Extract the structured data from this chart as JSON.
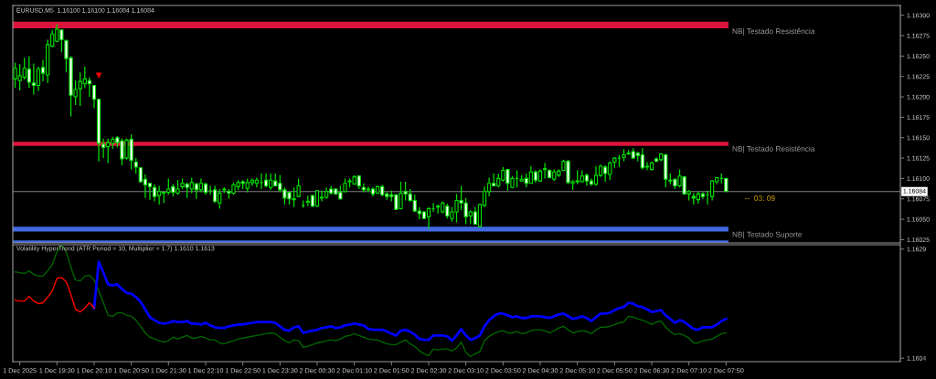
{
  "chart_data": [
    {
      "type": "candlestick",
      "title": "EURUSD,M5  1.16100 1.16100 1.16084 1.16084",
      "color": "#00e000",
      "tick_labels": "y",
      "categories": [
        null,
        null,
        null,
        null,
        null,
        null,
        null,
        null,
        null,
        null,
        null,
        null,
        null,
        null,
        null,
        null,
        null,
        null,
        null,
        null,
        null,
        null,
        null,
        null,
        null,
        null,
        null,
        null,
        null,
        null,
        null,
        null,
        null,
        null,
        null,
        null,
        null,
        null,
        null,
        null,
        null,
        null,
        null,
        null,
        null,
        null,
        null,
        null,
        null,
        null,
        null,
        null,
        null,
        null,
        null,
        null,
        null,
        null,
        null,
        null,
        null,
        null,
        null,
        null,
        null,
        null,
        null,
        null,
        null,
        null,
        null,
        null,
        null,
        null,
        null,
        null,
        null,
        null,
        null,
        null,
        null,
        null,
        null,
        null,
        null,
        null,
        null,
        null,
        null,
        null,
        null,
        null,
        null,
        null,
        null,
        null,
        null,
        null,
        null,
        null,
        null,
        null,
        null,
        null,
        null,
        null,
        null,
        null,
        null,
        null,
        null,
        null,
        null,
        null,
        null,
        null,
        null,
        null,
        null,
        null,
        null,
        null,
        null,
        null,
        null,
        null,
        null,
        null,
        null,
        null,
        null,
        null,
        null,
        null,
        null,
        null,
        null,
        null,
        null,
        null,
        null,
        null,
        null,
        null,
        null,
        null,
        null,
        null,
        null,
        null,
        null,
        null,
        null,
        null,
        null,
        null,
        null,
        null,
        null,
        null,
        null,
        null,
        null,
        null,
        null,
        null,
        null,
        null,
        null,
        null,
        null,
        null,
        null,
        null,
        null,
        null,
        null,
        null,
        null,
        null,
        null,
        null,
        null,
        null,
        null,
        null,
        null,
        null,
        null,
        null,
        null
      ],
      "ohlc": [
        [
          1.16222,
          1.16242,
          1.16211,
          1.16235
        ],
        [
          1.1622,
          1.1624,
          1.16208,
          1.16226
        ],
        [
          1.16224,
          1.16248,
          1.16221,
          1.16235
        ],
        [
          1.16234,
          1.1625,
          1.16211,
          1.16218
        ],
        [
          1.16217,
          1.16241,
          1.16203,
          1.16214
        ],
        [
          1.16214,
          1.16237,
          1.16207,
          1.16234
        ],
        [
          1.16236,
          1.16245,
          1.16219,
          1.16229
        ],
        [
          1.16227,
          1.1627,
          1.16217,
          1.16264
        ],
        [
          1.16262,
          1.16282,
          1.16261,
          1.16277
        ],
        [
          1.16268,
          1.16289,
          1.16267,
          1.16283
        ],
        [
          1.16282,
          1.16283,
          1.16255,
          1.1627
        ],
        [
          1.16269,
          1.1627,
          1.1623,
          1.16247
        ],
        [
          1.16248,
          1.1625,
          1.16176,
          1.16202
        ],
        [
          1.162,
          1.1622,
          1.1619,
          1.16209
        ],
        [
          1.1621,
          1.1623,
          1.16189,
          1.16219
        ],
        [
          1.16216,
          1.16237,
          1.16211,
          1.16222
        ],
        [
          1.1622,
          1.16224,
          1.162,
          1.16216
        ],
        [
          1.16214,
          1.16214,
          1.16186,
          1.16197
        ],
        [
          1.16197,
          1.16197,
          1.16121,
          1.16143
        ],
        [
          1.16142,
          1.16149,
          1.16125,
          1.16138
        ],
        [
          1.16139,
          1.16149,
          1.16119,
          1.16144
        ],
        [
          1.16143,
          1.16151,
          1.16136,
          1.16148
        ],
        [
          1.1615,
          1.16152,
          1.16138,
          1.16144
        ],
        [
          1.16146,
          1.16149,
          1.16116,
          1.16124
        ],
        [
          1.16125,
          1.16149,
          1.16123,
          1.16147
        ],
        [
          1.16148,
          1.16154,
          1.16111,
          1.16122
        ],
        [
          1.1612,
          1.16125,
          1.16106,
          1.16114
        ],
        [
          1.16113,
          1.16114,
          1.16095,
          1.16096
        ],
        [
          1.16099,
          1.16105,
          1.16076,
          1.16092
        ],
        [
          1.16094,
          1.16095,
          1.16074,
          1.1609
        ],
        [
          1.16089,
          1.16093,
          1.16072,
          1.16078
        ],
        [
          1.16079,
          1.16091,
          1.16068,
          1.16084
        ],
        [
          1.16082,
          1.16084,
          1.1607,
          1.16083
        ],
        [
          1.16083,
          1.161,
          1.1608,
          1.16087
        ],
        [
          1.1609,
          1.16093,
          1.16078,
          1.16083
        ],
        [
          1.16082,
          1.16098,
          1.1608,
          1.16087
        ],
        [
          1.1609,
          1.161,
          1.16087,
          1.16094
        ],
        [
          1.16093,
          1.16095,
          1.16076,
          1.16089
        ],
        [
          1.16087,
          1.16101,
          1.16082,
          1.16095
        ],
        [
          1.16093,
          1.16095,
          1.16075,
          1.16086
        ],
        [
          1.16086,
          1.161,
          1.16083,
          1.16094
        ],
        [
          1.16093,
          1.16095,
          1.1608,
          1.16083
        ],
        [
          1.16085,
          1.16091,
          1.1608,
          1.16085
        ],
        [
          1.16086,
          1.16091,
          1.1607,
          1.16072
        ],
        [
          1.1607,
          1.16087,
          1.16063,
          1.16082
        ],
        [
          1.16086,
          1.16089,
          1.16082,
          1.16087
        ],
        [
          1.16084,
          1.16087,
          1.16075,
          1.16082
        ],
        [
          1.16082,
          1.16095,
          1.1608,
          1.16092
        ],
        [
          1.1609,
          1.16098,
          1.16086,
          1.16095
        ],
        [
          1.16096,
          1.16098,
          1.16087,
          1.16094
        ],
        [
          1.16088,
          1.161,
          1.16083,
          1.16095
        ],
        [
          1.16095,
          1.161,
          1.16091,
          1.16098
        ],
        [
          1.16094,
          1.16101,
          1.16089,
          1.16098
        ],
        [
          1.16095,
          1.16106,
          1.16087,
          1.16095
        ],
        [
          1.16098,
          1.16106,
          1.16089,
          1.16091
        ],
        [
          1.16089,
          1.16106,
          1.16086,
          1.16098
        ],
        [
          1.16097,
          1.16106,
          1.1609,
          1.16091
        ],
        [
          1.16094,
          1.16104,
          1.16083,
          1.16086
        ],
        [
          1.16086,
          1.16089,
          1.16068,
          1.16076
        ],
        [
          1.16083,
          1.16084,
          1.16068,
          1.16075
        ],
        [
          1.16075,
          1.16089,
          1.16065,
          1.16074
        ],
        [
          1.16078,
          1.161,
          1.16077,
          1.16091
        ],
        [
          1.16067,
          1.16073,
          1.16064,
          1.16067
        ],
        [
          1.16071,
          1.16079,
          1.16066,
          1.16072
        ],
        [
          1.16079,
          1.1608,
          1.16065,
          1.16066
        ],
        [
          1.16066,
          1.16086,
          1.16065,
          1.16085
        ],
        [
          1.16076,
          1.16085,
          1.16072,
          1.16077
        ],
        [
          1.16077,
          1.16089,
          1.16075,
          1.16084
        ],
        [
          1.16087,
          1.16091,
          1.1608,
          1.16082
        ],
        [
          1.16087,
          1.16088,
          1.1608,
          1.16081
        ],
        [
          1.16083,
          1.16091,
          1.16074,
          1.16075
        ],
        [
          1.16084,
          1.161,
          1.16083,
          1.16094
        ],
        [
          1.16096,
          1.161,
          1.16089,
          1.16097
        ],
        [
          1.16093,
          1.16104,
          1.16093,
          1.16102
        ],
        [
          1.16103,
          1.16104,
          1.16087,
          1.16091
        ],
        [
          1.16089,
          1.16094,
          1.16083,
          1.16086
        ],
        [
          1.16087,
          1.1609,
          1.16083,
          1.16086
        ],
        [
          1.16087,
          1.16089,
          1.16078,
          1.16081
        ],
        [
          1.16082,
          1.16091,
          1.16081,
          1.1609
        ],
        [
          1.1609,
          1.16092,
          1.16078,
          1.1608
        ],
        [
          1.16081,
          1.16083,
          1.16074,
          1.16078
        ],
        [
          1.1608,
          1.16085,
          1.16072,
          1.16078
        ],
        [
          1.1608,
          1.16081,
          1.16062,
          1.16062
        ],
        [
          1.16063,
          1.16096,
          1.16062,
          1.16082
        ],
        [
          1.16084,
          1.16096,
          1.16073,
          1.16081
        ],
        [
          1.16081,
          1.16087,
          1.16071,
          1.16073
        ],
        [
          1.16073,
          1.1608,
          1.16059,
          1.1606
        ],
        [
          1.1606,
          1.16065,
          1.1605,
          1.16057
        ],
        [
          1.16059,
          1.1606,
          1.1605,
          1.16051
        ],
        [
          1.16053,
          1.16065,
          1.16038,
          1.16063
        ],
        [
          1.16063,
          1.1607,
          1.16059,
          1.16063
        ],
        [
          1.16066,
          1.16068,
          1.16057,
          1.16065
        ],
        [
          1.16059,
          1.16072,
          1.16057,
          1.1607
        ],
        [
          1.16066,
          1.16069,
          1.16051,
          1.16054
        ],
        [
          1.16051,
          1.16065,
          1.16047,
          1.16059
        ],
        [
          1.16059,
          1.16081,
          1.16046,
          1.16073
        ],
        [
          1.16073,
          1.16091,
          1.16061,
          1.1607
        ],
        [
          1.1607,
          1.16076,
          1.16044,
          1.16053
        ],
        [
          1.16054,
          1.16061,
          1.16044,
          1.16059
        ],
        [
          1.16059,
          1.16065,
          1.16044,
          1.16044
        ],
        [
          1.16041,
          1.16069,
          1.1604,
          1.16068
        ],
        [
          1.16067,
          1.1609,
          1.16065,
          1.16084
        ],
        [
          1.16084,
          1.16101,
          1.16078,
          1.16094
        ],
        [
          1.16094,
          1.16106,
          1.1609,
          1.16091
        ],
        [
          1.16091,
          1.16106,
          1.16089,
          1.161
        ],
        [
          1.16098,
          1.16114,
          1.16096,
          1.1611
        ],
        [
          1.16111,
          1.16111,
          1.16085,
          1.16094
        ],
        [
          1.16089,
          1.16103,
          1.16088,
          1.161
        ],
        [
          1.161,
          1.1611,
          1.16089,
          1.161
        ],
        [
          1.16097,
          1.16104,
          1.16096,
          1.16099
        ],
        [
          1.161,
          1.16106,
          1.16089,
          1.16094
        ],
        [
          1.16094,
          1.16115,
          1.16094,
          1.16108
        ],
        [
          1.16108,
          1.1611,
          1.16095,
          1.16098
        ],
        [
          1.16097,
          1.16111,
          1.16096,
          1.16109
        ],
        [
          1.16112,
          1.16119,
          1.161,
          1.16111
        ],
        [
          1.1611,
          1.16111,
          1.161,
          1.16101
        ],
        [
          1.16099,
          1.16111,
          1.16097,
          1.16108
        ],
        [
          1.16104,
          1.16111,
          1.16102,
          1.16109
        ],
        [
          1.1611,
          1.16123,
          1.16109,
          1.16121
        ],
        [
          1.16121,
          1.16123,
          1.16093,
          1.16095
        ],
        [
          1.16094,
          1.16098,
          1.16086,
          1.16096
        ],
        [
          1.16097,
          1.1611,
          1.16093,
          1.16096
        ],
        [
          1.16096,
          1.1611,
          1.16095,
          1.16103
        ],
        [
          1.16104,
          1.16106,
          1.16091,
          1.16097
        ],
        [
          1.16097,
          1.161,
          1.16091,
          1.16093
        ],
        [
          1.16093,
          1.16115,
          1.16091,
          1.16104
        ],
        [
          1.16104,
          1.16117,
          1.16102,
          1.16115
        ],
        [
          1.16114,
          1.16116,
          1.16096,
          1.16106
        ],
        [
          1.16105,
          1.16121,
          1.16098,
          1.16119
        ],
        [
          1.1612,
          1.16126,
          1.16113,
          1.16125
        ],
        [
          1.16125,
          1.16129,
          1.16114,
          1.16125
        ],
        [
          1.16126,
          1.16136,
          1.16121,
          1.16129
        ],
        [
          1.16131,
          1.16135,
          1.16129,
          1.1613
        ],
        [
          1.16133,
          1.16137,
          1.16124,
          1.16125
        ],
        [
          1.16131,
          1.16133,
          1.16121,
          1.16128
        ],
        [
          1.16129,
          1.16137,
          1.16111,
          1.16113
        ],
        [
          1.16115,
          1.1612,
          1.1611,
          1.16114
        ],
        [
          1.16111,
          1.16121,
          1.1611,
          1.16119
        ],
        [
          1.16124,
          1.16126,
          1.1612,
          1.16121
        ],
        [
          1.16123,
          1.16131,
          1.16121,
          1.1613
        ],
        [
          1.16129,
          1.1613,
          1.16089,
          1.16099
        ],
        [
          1.16098,
          1.16106,
          1.16093,
          1.16097
        ],
        [
          1.16099,
          1.161,
          1.16087,
          1.16091
        ],
        [
          1.16091,
          1.16111,
          1.16089,
          1.16103
        ],
        [
          1.16102,
          1.16103,
          1.1608,
          1.16081
        ],
        [
          1.16081,
          1.16086,
          1.16073,
          1.16084
        ],
        [
          1.16078,
          1.16082,
          1.16068,
          1.16076
        ],
        [
          1.16074,
          1.16084,
          1.16069,
          1.16081
        ],
        [
          1.16081,
          1.16083,
          1.16075,
          1.16078
        ],
        [
          1.1608,
          1.16085,
          1.16068,
          1.1608
        ],
        [
          1.16078,
          1.16098,
          1.16073,
          1.16097
        ],
        [
          1.16096,
          1.16102,
          1.16093,
          1.16101
        ],
        [
          1.161,
          1.16106,
          1.16094,
          1.161
        ],
        [
          1.161,
          1.161,
          1.16084,
          1.16084
        ],
        null,
        null,
        null,
        null,
        null,
        null,
        null,
        null,
        null,
        null,
        null,
        null,
        null,
        null,
        null,
        null,
        null,
        null,
        null,
        null,
        null,
        null,
        null,
        null,
        null,
        null,
        null,
        null,
        null,
        null,
        null,
        null,
        null,
        null,
        null,
        null,
        null
      ],
      "series": [
        {
          "type": "scatter",
          "color": "#ff0000",
          "marker": "triangle",
          "values": [
            null,
            null,
            null,
            null,
            null,
            null,
            null,
            null,
            null,
            null,
            null,
            null,
            null,
            null,
            null,
            null,
            null,
            null,
            1.16226,
            null,
            null,
            null,
            null,
            null,
            null,
            null,
            null,
            null,
            null,
            null,
            null,
            null,
            null,
            null,
            null,
            null,
            null,
            null,
            null,
            null,
            null,
            null,
            null,
            null,
            null,
            null,
            null,
            null,
            null,
            null,
            null,
            null,
            null,
            null,
            null,
            null,
            null,
            null,
            null,
            null,
            null,
            null,
            null,
            null,
            null,
            null,
            null,
            null,
            null,
            null,
            null,
            null,
            null,
            null,
            null,
            null,
            null,
            null,
            null,
            null,
            null,
            null,
            null,
            null,
            null,
            null,
            null,
            null,
            null,
            null,
            null,
            null,
            null,
            null,
            null,
            null,
            null,
            null,
            null,
            null,
            null,
            null,
            null,
            null,
            null,
            null,
            null,
            null,
            null,
            null,
            null,
            null,
            null,
            null,
            null,
            null,
            null,
            null,
            null,
            null,
            null,
            null,
            null,
            null,
            null,
            null,
            null,
            null,
            null,
            null,
            null,
            null,
            null,
            null,
            null,
            null,
            null,
            null,
            null,
            null,
            null,
            null,
            null,
            null,
            null,
            null,
            null,
            null,
            null,
            null,
            null,
            null,
            null,
            null,
            null,
            null,
            null,
            null,
            null,
            null,
            null,
            null,
            null,
            null,
            null,
            null,
            null,
            null,
            null,
            null,
            null,
            null,
            null,
            null,
            null,
            null,
            null,
            null,
            null,
            null,
            null,
            null,
            null,
            null,
            null,
            null,
            null,
            null,
            null,
            null,
            null
          ]
        }
      ],
      "ylim": [
        1.16021,
        1.16312
      ],
      "yticks": [
        {
          "value": 1.16025,
          "label": "1.16025"
        },
        {
          "value": 1.1605,
          "label": "1.16050"
        },
        {
          "value": 1.16075,
          "label": "1.16075"
        },
        {
          "value": 1.161,
          "label": "1.16100"
        },
        {
          "value": 1.16125,
          "label": "1.16125"
        },
        {
          "value": 1.1615,
          "label": "1.16150"
        },
        {
          "value": 1.16175,
          "label": "1.16175"
        },
        {
          "value": 1.162,
          "label": "1.16200"
        },
        {
          "value": 1.16225,
          "label": "1.16225"
        },
        {
          "value": 1.1625,
          "label": "1.16250"
        },
        {
          "value": 1.16275,
          "label": "1.16275"
        },
        {
          "value": 1.163,
          "label": "1.16300"
        }
      ],
      "bands": [
        {
          "axis": "y",
          "from": 1.16284,
          "to": 1.16292,
          "label": "NB| Testado Resistência",
          "color": "#dc143c"
        },
        {
          "axis": "y",
          "from": 1.1614,
          "to": 1.16145,
          "label": "NB| Testado Resistência",
          "color": "#dc143c"
        },
        {
          "axis": "y",
          "from": 1.16035,
          "to": 1.16041,
          "label": "NB| Testado Suporte",
          "color": "#4169e1"
        },
        {
          "axis": "y",
          "from": 1.16021,
          "to": 1.16024,
          "color": "#4169e1"
        }
      ],
      "ref_lines": [
        {
          "axis": "y",
          "value": 1.16084,
          "label": "1.16084",
          "color": "#808080"
        }
      ],
      "annotations": [
        "--  03: 09"
      ]
    },
    {
      "type": "line",
      "title": "Volatility HyperTrend (ATR Period = 10, Multiplier = 1.7) 1.1610 1.1613",
      "categories": [
        null,
        "1 Dec 2025",
        null,
        null,
        null,
        null,
        null,
        null,
        null,
        "1 Dec 19:30",
        null,
        null,
        null,
        null,
        null,
        null,
        null,
        "1 Dec 20:10",
        null,
        null,
        null,
        null,
        null,
        null,
        null,
        "1 Dec 20:50",
        null,
        null,
        null,
        null,
        null,
        null,
        null,
        "1 Dec 21:30",
        null,
        null,
        null,
        null,
        null,
        null,
        null,
        "1 Dec 22:10",
        null,
        null,
        null,
        null,
        null,
        null,
        null,
        "1 Dec 22:50",
        null,
        null,
        null,
        null,
        null,
        null,
        null,
        "1 Dec 23:30",
        null,
        null,
        null,
        null,
        null,
        null,
        null,
        "2 Dec 00:30",
        null,
        null,
        null,
        null,
        null,
        null,
        null,
        "2 Dec 01:10",
        null,
        null,
        null,
        null,
        null,
        null,
        null,
        "2 Dec 01:50",
        null,
        null,
        null,
        null,
        null,
        null,
        null,
        "2 Dec 02:30",
        null,
        null,
        null,
        null,
        null,
        null,
        null,
        "2 Dec 03:10",
        null,
        null,
        null,
        null,
        null,
        null,
        null,
        "2 Dec 03:50",
        null,
        null,
        null,
        null,
        null,
        null,
        null,
        "2 Dec 04:30",
        null,
        null,
        null,
        null,
        null,
        null,
        null,
        "2 Dec 05:10",
        null,
        null,
        null,
        null,
        null,
        null,
        null,
        "2 Dec 05:50",
        null,
        null,
        null,
        null,
        null,
        null,
        null,
        "2 Dec 06:30",
        null,
        null,
        null,
        null,
        null,
        null,
        null,
        "2 Dec 07:10",
        null,
        null,
        null,
        null,
        null,
        null,
        null,
        "2 Dec 07:50",
        null,
        null,
        null,
        null,
        null,
        null,
        null,
        null,
        null,
        null,
        null,
        null,
        null,
        null,
        null,
        null,
        null,
        null,
        null,
        null,
        null,
        null,
        null,
        null,
        null,
        null,
        null,
        null,
        null,
        null,
        null,
        null,
        null,
        null,
        null,
        null,
        null
      ],
      "series": [
        {
          "color": "#006400",
          "values": [
            1.16238,
            1.16236,
            1.16234,
            1.1624,
            1.16232,
            1.16228,
            1.16228,
            1.1624,
            1.16255,
            1.16284,
            1.163,
            1.16284,
            1.16248,
            1.16219,
            1.16217,
            1.16228,
            1.1623,
            1.16219,
            1.16194,
            1.16167,
            1.16138,
            1.16136,
            1.16144,
            1.16144,
            1.16138,
            1.16136,
            1.16127,
            1.16113,
            1.16098,
            1.16088,
            1.16084,
            1.1608,
            1.16077,
            1.1608,
            1.16088,
            1.16084,
            1.16088,
            1.16092,
            1.16086,
            1.16086,
            1.1609,
            1.16086,
            1.16082,
            1.16082,
            1.16075,
            1.16073,
            1.16077,
            1.1608,
            1.16084,
            1.16086,
            1.16088,
            1.1609,
            1.16092,
            1.16094,
            1.16096,
            1.16098,
            1.16096,
            1.16088,
            1.1608,
            1.16075,
            1.16082,
            1.1608,
            1.16065,
            1.16067,
            1.16071,
            1.16075,
            1.16077,
            1.1608,
            1.16082,
            1.1608,
            1.16084,
            1.1609,
            1.16092,
            1.16096,
            1.16092,
            1.16088,
            1.16084,
            1.16082,
            1.16082,
            1.16077,
            1.16073,
            1.16071,
            1.16071,
            1.16077,
            1.16082,
            1.16073,
            1.16067,
            1.16057,
            1.1605,
            1.16046,
            1.16061,
            1.16059,
            1.16061,
            1.16061,
            1.16057,
            1.16063,
            1.16077,
            1.16053,
            1.16044,
            1.1605,
            1.16055,
            1.1608,
            1.1609,
            1.16096,
            1.16101,
            1.16103,
            1.16098,
            1.16098,
            1.16101,
            1.16096,
            1.16098,
            1.16103,
            1.16105,
            1.16105,
            1.16103,
            1.16098,
            1.16103,
            1.16109,
            1.16113,
            1.16105,
            1.16098,
            1.16101,
            1.16103,
            1.16101,
            1.16096,
            1.16105,
            1.16111,
            1.16111,
            1.16113,
            1.16117,
            1.16121,
            1.16123,
            1.16136,
            1.16134,
            1.1613,
            1.16127,
            1.16123,
            1.16117,
            1.16123,
            1.16125,
            1.16111,
            1.16101,
            1.16094,
            1.16096,
            1.16092,
            1.16086,
            1.16075,
            1.16075,
            1.1608,
            1.16082,
            1.16084,
            1.1609,
            1.16096,
            1.16098,
            null,
            null,
            null,
            null,
            null,
            null,
            null,
            null,
            null,
            null,
            null,
            null,
            null,
            null,
            null,
            null,
            null,
            null,
            null,
            null,
            null,
            null,
            null,
            null,
            null,
            null,
            null,
            null,
            null,
            null,
            null,
            null,
            null,
            null,
            null,
            null,
            null
          ]
        },
        {
          "color": "#0000ff",
          "values": [
            null,
            null,
            null,
            null,
            null,
            null,
            null,
            null,
            null,
            null,
            null,
            null,
            null,
            null,
            null,
            null,
            null,
            1.16155,
            1.16261,
            1.16236,
            1.16209,
            1.16207,
            1.16209,
            1.16198,
            1.1619,
            1.16188,
            1.1618,
            1.16169,
            1.16152,
            1.16134,
            1.16127,
            1.16121,
            1.16119,
            1.16121,
            1.16125,
            1.16123,
            1.16123,
            1.16125,
            1.16119,
            1.16119,
            1.16117,
            1.16121,
            1.16115,
            1.16111,
            1.16109,
            1.16109,
            1.16113,
            1.16115,
            1.16117,
            1.16117,
            1.16119,
            1.16121,
            1.16123,
            1.16123,
            1.16123,
            1.16123,
            1.16121,
            1.16113,
            1.16105,
            1.16103,
            1.16111,
            1.16113,
            1.16098,
            1.16101,
            1.16103,
            1.16105,
            1.16109,
            1.16111,
            1.16113,
            1.16109,
            1.16111,
            1.16115,
            1.16117,
            1.16119,
            1.16117,
            1.16115,
            1.16107,
            1.16105,
            1.16105,
            1.16105,
            1.16101,
            1.16096,
            1.16092,
            1.16103,
            1.16105,
            1.16101,
            1.16094,
            1.16084,
            1.16082,
            1.16082,
            1.16092,
            1.16092,
            1.16092,
            1.1609,
            1.1608,
            1.16092,
            1.16107,
            1.16092,
            1.16082,
            1.16086,
            1.16092,
            1.16113,
            1.16127,
            1.16136,
            1.16142,
            1.16142,
            1.16138,
            1.16134,
            1.16136,
            1.16132,
            1.16132,
            1.16136,
            1.16136,
            1.16136,
            1.16134,
            1.16132,
            1.16136,
            1.1614,
            1.16142,
            1.16136,
            1.1613,
            1.16132,
            1.16136,
            1.16132,
            1.16125,
            1.16134,
            1.16142,
            1.16142,
            1.16144,
            1.1615,
            1.16155,
            1.16157,
            1.16167,
            1.16165,
            1.16159,
            1.16157,
            1.16152,
            1.16146,
            1.16148,
            1.1615,
            1.16138,
            1.1613,
            1.16121,
            1.16127,
            1.16123,
            1.16115,
            1.16107,
            1.16105,
            1.16111,
            1.16111,
            1.16111,
            1.16117,
            1.16125,
            1.1613,
            null,
            null,
            null,
            null,
            null,
            null,
            null,
            null,
            null,
            null,
            null,
            null,
            null,
            null,
            null,
            null,
            null,
            null,
            null,
            null,
            null,
            null,
            null,
            null,
            null,
            null,
            null,
            null,
            null,
            null,
            null,
            null,
            null,
            null,
            null,
            null,
            null
          ]
        },
        {
          "color": "#ff0000",
          "values": [
            1.16173,
            1.16171,
            1.16171,
            1.16182,
            1.16171,
            1.16165,
            1.16167,
            1.1618,
            1.16194,
            1.16223,
            1.16225,
            1.16215,
            1.16186,
            1.16152,
            1.16146,
            1.16155,
            1.16167,
            1.16155,
            null,
            null,
            null,
            null,
            null,
            null,
            null,
            null,
            null,
            null,
            null,
            null,
            null,
            null,
            null,
            null,
            null,
            null,
            null,
            null,
            null,
            null,
            null,
            null,
            null,
            null,
            null,
            null,
            null,
            null,
            null,
            null,
            null,
            null,
            null,
            null,
            null,
            null,
            null,
            null,
            null,
            null,
            null,
            null,
            null,
            null,
            null,
            null,
            null,
            null,
            null,
            null,
            null,
            null,
            null,
            null,
            null,
            null,
            null,
            null,
            null,
            null,
            null,
            null,
            null,
            null,
            null,
            null,
            null,
            null,
            null,
            null,
            null,
            null,
            null,
            null,
            null,
            null,
            null,
            null,
            null,
            null,
            null,
            null,
            null,
            null,
            null,
            null,
            null,
            null,
            null,
            null,
            null,
            null,
            null,
            null,
            null,
            null,
            null,
            null,
            null,
            null,
            null,
            null,
            null,
            null,
            null,
            null,
            null,
            null,
            null,
            null,
            null,
            null,
            null,
            null,
            null,
            null,
            null,
            null,
            null,
            null,
            null,
            null,
            null,
            null,
            null,
            null,
            null,
            null,
            null,
            null,
            null,
            null,
            null,
            null,
            null,
            null,
            null,
            null,
            null,
            null,
            null,
            null,
            null,
            null,
            null,
            null,
            null,
            null,
            null,
            null,
            null,
            null,
            null,
            null,
            null,
            null,
            null,
            null,
            null,
            null,
            null,
            null,
            null,
            null,
            null,
            null,
            null,
            null,
            null,
            null,
            null
          ]
        }
      ],
      "ylim": [
        1.16032,
        1.163
      ],
      "yticks": [
        1.1604,
        1.1629
      ]
    }
  ]
}
